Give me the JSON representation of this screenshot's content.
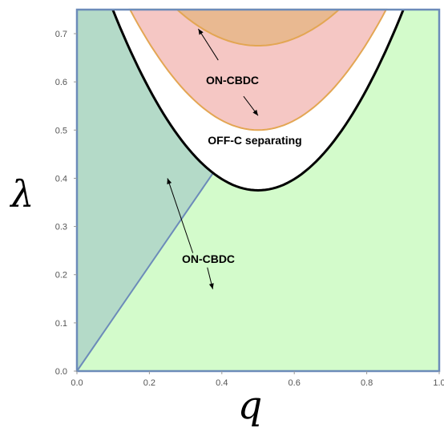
{
  "chart_data": {
    "type": "area",
    "xlabel": "q",
    "ylabel": "λ",
    "xlim": [
      0,
      1
    ],
    "ylim": [
      0,
      0.75
    ],
    "x_ticks": [
      "0.0",
      "0.2",
      "0.4",
      "0.6",
      "0.8",
      "1.0"
    ],
    "x_tick_values": [
      0,
      0.2,
      0.4,
      0.6,
      0.8,
      1.0
    ],
    "y_ticks": [
      "0.0",
      "0.1",
      "0.2",
      "0.3",
      "0.4",
      "0.5",
      "0.6",
      "0.7"
    ],
    "y_tick_values": [
      0,
      0.1,
      0.2,
      0.3,
      0.4,
      0.5,
      0.6,
      0.7
    ],
    "boundary_line": {
      "x": [
        0,
        0.375
      ],
      "y": [
        0,
        0.41
      ]
    },
    "off_c_parabola": {
      "vertex": [
        0.5,
        0.375
      ],
      "curvature": 2.33,
      "clip_y": 0.75
    },
    "inner_curve_outer": {
      "vertex": [
        0.5,
        0.5
      ],
      "curvature": 2.0,
      "clip_y": 0.75
    },
    "inner_curve_upper": {
      "vertex": [
        0.5,
        0.675
      ],
      "curvature": 1.5,
      "clip_y": 0.75
    },
    "regions": [
      {
        "name": "ON-CBDC",
        "color": "#d3fbcb",
        "label_at": [
          0.36,
          0.235
        ],
        "arrows": [
          {
            "from": [
              0.32,
              0.245
            ],
            "to": [
              0.25,
              0.4
            ]
          },
          {
            "from": [
              0.36,
              0.215
            ],
            "to": [
              0.375,
              0.17
            ]
          }
        ]
      },
      {
        "name": "OFF-C separating",
        "color": "#ffffff",
        "label_at": [
          0.5,
          0.48
        ]
      },
      {
        "name": "ON-CBDC",
        "color": "#f5c7c4",
        "label_at": [
          0.5,
          0.59
        ],
        "arrows": [
          {
            "from": [
              0.39,
              0.645
            ],
            "to": [
              0.335,
              0.71
            ]
          },
          {
            "from": [
              0.46,
              0.57
            ],
            "to": [
              0.5,
              0.53
            ]
          }
        ]
      }
    ],
    "colors": {
      "left_region": "#b4dac8",
      "right_region": "#d3fbcb",
      "pink_region": "#f5c7c4",
      "orange_region": "#e9b991",
      "frame": "#6c8bb9",
      "orange_stroke": "#e3a653",
      "black_curve": "#000000"
    }
  },
  "labels": {
    "on_cbdc_lower": "ON-CBDC",
    "off_c_separating": "OFF-C separating",
    "on_cbdc_upper": "ON-CBDC",
    "x_axis_title": "q",
    "y_axis_title": "λ"
  }
}
